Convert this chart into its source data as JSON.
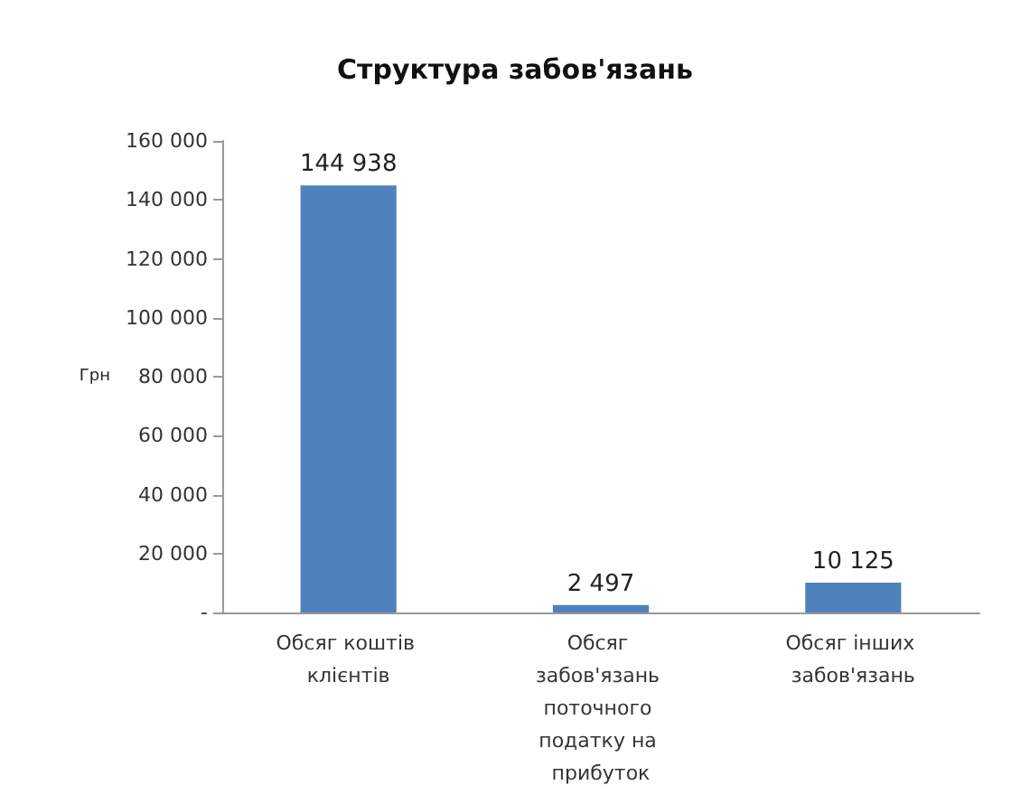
{
  "chart_data": {
    "type": "bar",
    "title": "Структура забов'язань",
    "ylabel": "Грн",
    "categories": [
      "Обсяг коштів клієнтів",
      "Обсяг забов'язань поточного податку на прибуток",
      "Обсяг інших забов'язань"
    ],
    "values": [
      144938,
      2497,
      10125
    ],
    "color": "#4f81bd",
    "value_labels": [
      "144 938",
      "2 497",
      "10 125"
    ],
    "ylim": [
      0,
      160000
    ],
    "yticks": [
      {
        "value": 0,
        "label": "-"
      },
      {
        "value": 20000,
        "label": "20 000"
      },
      {
        "value": 40000,
        "label": "40 000"
      },
      {
        "value": 60000,
        "label": "60 000"
      },
      {
        "value": 80000,
        "label": "80 000"
      },
      {
        "value": 100000,
        "label": "100 000"
      },
      {
        "value": 120000,
        "label": "120 000"
      },
      {
        "value": 140000,
        "label": "140 000"
      },
      {
        "value": 160000,
        "label": "160 000"
      }
    ],
    "grid": false
  }
}
